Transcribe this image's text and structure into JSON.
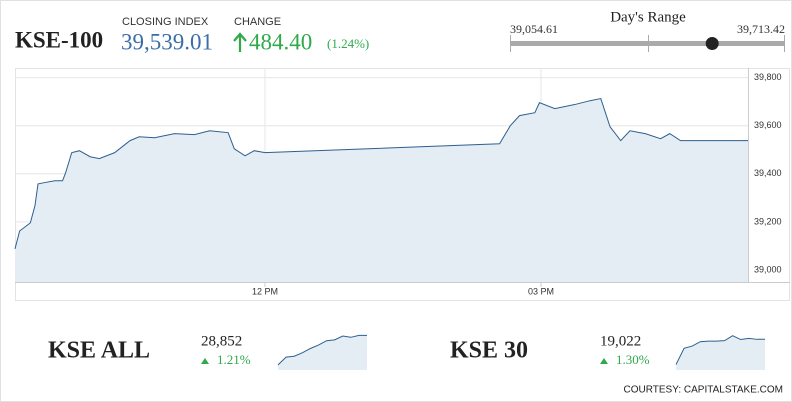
{
  "header": {
    "title": "KSE-100",
    "closing_label": "CLOSING INDEX",
    "closing": {
      "value": 39539.01,
      "label": "39,539.01"
    },
    "change_label": "CHANGE",
    "change": {
      "value": 484.4,
      "label": "484.40"
    },
    "change_percent": "(1.24%)",
    "range_title": "Day's Range",
    "range_low": {
      "value": 39054.61,
      "label": "39,054.61"
    },
    "range_high": {
      "value": 39713.42,
      "label": "39,713.42"
    }
  },
  "chart_data": [
    {
      "type": "line",
      "fill": true,
      "color": "#2f5f8f",
      "fill_color": "#e4ecf4",
      "x": [
        "09:17",
        "09:20",
        "09:27",
        "09:30",
        "09:32",
        "09:36",
        "09:43",
        "09:48",
        "09:50",
        "09:54",
        "09:59",
        "10:06",
        "10:12",
        "10:22",
        "10:32",
        "10:38",
        "10:48",
        "11:01",
        "11:14",
        "11:24",
        "11:36",
        "11:40",
        "11:47",
        "11:53",
        "12:00",
        "14:33",
        "14:40",
        "14:46",
        "14:56",
        "14:59",
        "15:09",
        "15:22",
        "15:32",
        "15:39",
        "15:45",
        "15:52",
        "15:58",
        "16:08",
        "16:18",
        "16:24",
        "16:31",
        "16:37",
        "17:15"
      ],
      "values": [
        39088,
        39162,
        39196,
        39267,
        39358,
        39363,
        39371,
        39371,
        39404,
        39488,
        39496,
        39471,
        39463,
        39488,
        39538,
        39554,
        39550,
        39567,
        39563,
        39579,
        39571,
        39504,
        39475,
        39496,
        39488,
        39525,
        39600,
        39642,
        39654,
        39696,
        39671,
        39688,
        39704,
        39713,
        39596,
        39538,
        39579,
        39567,
        39546,
        39567,
        39538,
        39538,
        39538
      ],
      "xlim": [
        "09:17",
        "17:15"
      ],
      "xticks": [
        {
          "value": "12:00",
          "label": "12 PM"
        },
        {
          "value": "15:00",
          "label": "03 PM"
        }
      ],
      "ylim": [
        38950,
        39840
      ],
      "yticks": [
        {
          "value": 39000,
          "label": "39,000"
        },
        {
          "value": 39200,
          "label": "39,200"
        },
        {
          "value": 39400,
          "label": "39,400"
        },
        {
          "value": 39600,
          "label": "39,600"
        },
        {
          "value": 39800,
          "label": "39,800"
        }
      ],
      "grid": true
    },
    {
      "type": "line",
      "fill": true,
      "color": "#2f5f8f",
      "fill_color": "#e4ecf4",
      "title": "KSE ALL",
      "close_label": "28,852",
      "change_label": "1.21%",
      "values": [
        28510,
        28600,
        28610,
        28650,
        28700,
        28740,
        28790,
        28800,
        28845,
        28830,
        28852,
        28852
      ],
      "ylim": [
        28450,
        28880
      ]
    },
    {
      "type": "line",
      "fill": true,
      "color": "#2f5f8f",
      "fill_color": "#e4ecf4",
      "title": "KSE 30",
      "close_label": "19,022",
      "change_label": "1.30%",
      "values": [
        18790,
        18940,
        18960,
        19000,
        19005,
        19005,
        19010,
        19055,
        19020,
        19030,
        19022,
        19022
      ],
      "ylim": [
        18740,
        19080
      ]
    }
  ]
}
